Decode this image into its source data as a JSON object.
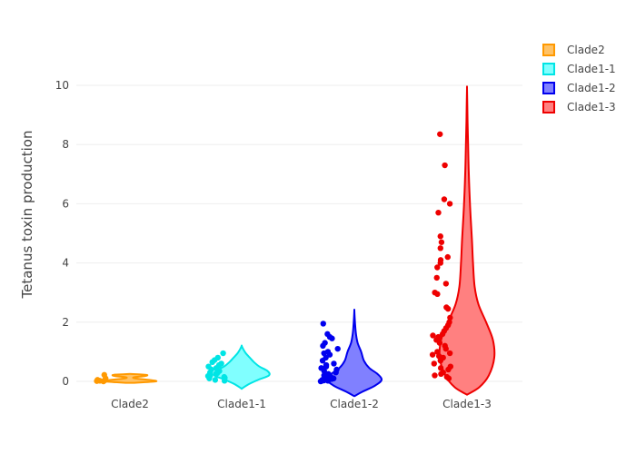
{
  "chart_data": {
    "type": "violin",
    "ylabel": "Tetanus toxin production",
    "xlabel": "",
    "ylim": [
      -0.45,
      10.5
    ],
    "yticks": [
      0,
      2,
      4,
      6,
      8,
      10
    ],
    "grid": "horizontal",
    "legend_position": "top-right",
    "categories": [
      "Clade2",
      "Clade1-1",
      "Clade1-2",
      "Clade1-3"
    ],
    "series": [
      {
        "name": "Clade2",
        "line_color": "#ff9900",
        "fill_color": "#ffc266",
        "points": [
          0.22,
          0.1,
          0.05,
          0.02,
          0.0,
          0.03,
          0.01
        ],
        "violin_range": [
          -0.05,
          0.25
        ],
        "violin_density": [
          [
            -0.05,
            0.1
          ],
          [
            0.0,
            0.95
          ],
          [
            0.05,
            0.7
          ],
          [
            0.1,
            0.2
          ],
          [
            0.14,
            0.15
          ],
          [
            0.18,
            0.55
          ],
          [
            0.22,
            0.6
          ],
          [
            0.25,
            0.05
          ]
        ]
      },
      {
        "name": "Clade1-1",
        "line_color": "#00e5e5",
        "fill_color": "#80ffff",
        "points": [
          0.95,
          0.8,
          0.72,
          0.65,
          0.6,
          0.55,
          0.5,
          0.45,
          0.4,
          0.35,
          0.3,
          0.28,
          0.25,
          0.2,
          0.18,
          0.15,
          0.12,
          0.1,
          0.05,
          0.02
        ],
        "violin_range": [
          -0.25,
          1.2
        ],
        "violin_density": [
          [
            -0.25,
            0.0
          ],
          [
            -0.1,
            0.25
          ],
          [
            0.05,
            0.6
          ],
          [
            0.2,
            1.0
          ],
          [
            0.35,
            0.95
          ],
          [
            0.5,
            0.65
          ],
          [
            0.65,
            0.45
          ],
          [
            0.8,
            0.3
          ],
          [
            0.95,
            0.15
          ],
          [
            1.1,
            0.05
          ],
          [
            1.2,
            0.0
          ]
        ]
      },
      {
        "name": "Clade1-2",
        "line_color": "#0000ee",
        "fill_color": "#8080ff",
        "points": [
          1.95,
          1.6,
          1.5,
          1.45,
          1.3,
          1.2,
          1.1,
          1.0,
          0.95,
          0.9,
          0.8,
          0.7,
          0.6,
          0.55,
          0.5,
          0.45,
          0.4,
          0.35,
          0.3,
          0.25,
          0.2,
          0.15,
          0.12,
          0.1,
          0.08,
          0.05,
          0.03,
          0.02,
          0.01,
          0.0
        ],
        "violin_range": [
          -0.5,
          2.4
        ],
        "violin_density": [
          [
            -0.5,
            0.0
          ],
          [
            -0.35,
            0.3
          ],
          [
            -0.15,
            0.75
          ],
          [
            0.05,
            1.0
          ],
          [
            0.25,
            0.85
          ],
          [
            0.45,
            0.55
          ],
          [
            0.7,
            0.35
          ],
          [
            1.0,
            0.25
          ],
          [
            1.3,
            0.12
          ],
          [
            1.6,
            0.06
          ],
          [
            1.9,
            0.03
          ],
          [
            2.2,
            0.01
          ],
          [
            2.4,
            0.0
          ]
        ]
      },
      {
        "name": "Clade1-3",
        "line_color": "#ee0000",
        "fill_color": "#ff8080",
        "points": [
          8.35,
          7.3,
          6.15,
          6.0,
          5.7,
          4.9,
          4.7,
          4.5,
          4.2,
          4.1,
          4.0,
          3.85,
          3.5,
          3.3,
          3.0,
          2.95,
          2.5,
          2.45,
          2.15,
          2.0,
          1.9,
          1.8,
          1.7,
          1.6,
          1.55,
          1.5,
          1.45,
          1.4,
          1.3,
          1.2,
          1.1,
          1.0,
          0.95,
          0.9,
          0.85,
          0.8,
          0.7,
          0.6,
          0.5,
          0.45,
          0.4,
          0.3,
          0.25,
          0.2,
          0.15,
          0.1
        ],
        "violin_range": [
          -0.45,
          9.9
        ],
        "violin_density": [
          [
            -0.45,
            0.0
          ],
          [
            -0.2,
            0.45
          ],
          [
            0.2,
            0.8
          ],
          [
            0.8,
            1.0
          ],
          [
            1.4,
            0.95
          ],
          [
            2.0,
            0.7
          ],
          [
            2.6,
            0.42
          ],
          [
            3.2,
            0.28
          ],
          [
            4.0,
            0.22
          ],
          [
            4.8,
            0.18
          ],
          [
            5.6,
            0.13
          ],
          [
            6.4,
            0.09
          ],
          [
            7.2,
            0.06
          ],
          [
            8.0,
            0.04
          ],
          [
            8.8,
            0.02
          ],
          [
            9.4,
            0.01
          ],
          [
            9.9,
            0.0
          ]
        ]
      }
    ]
  }
}
